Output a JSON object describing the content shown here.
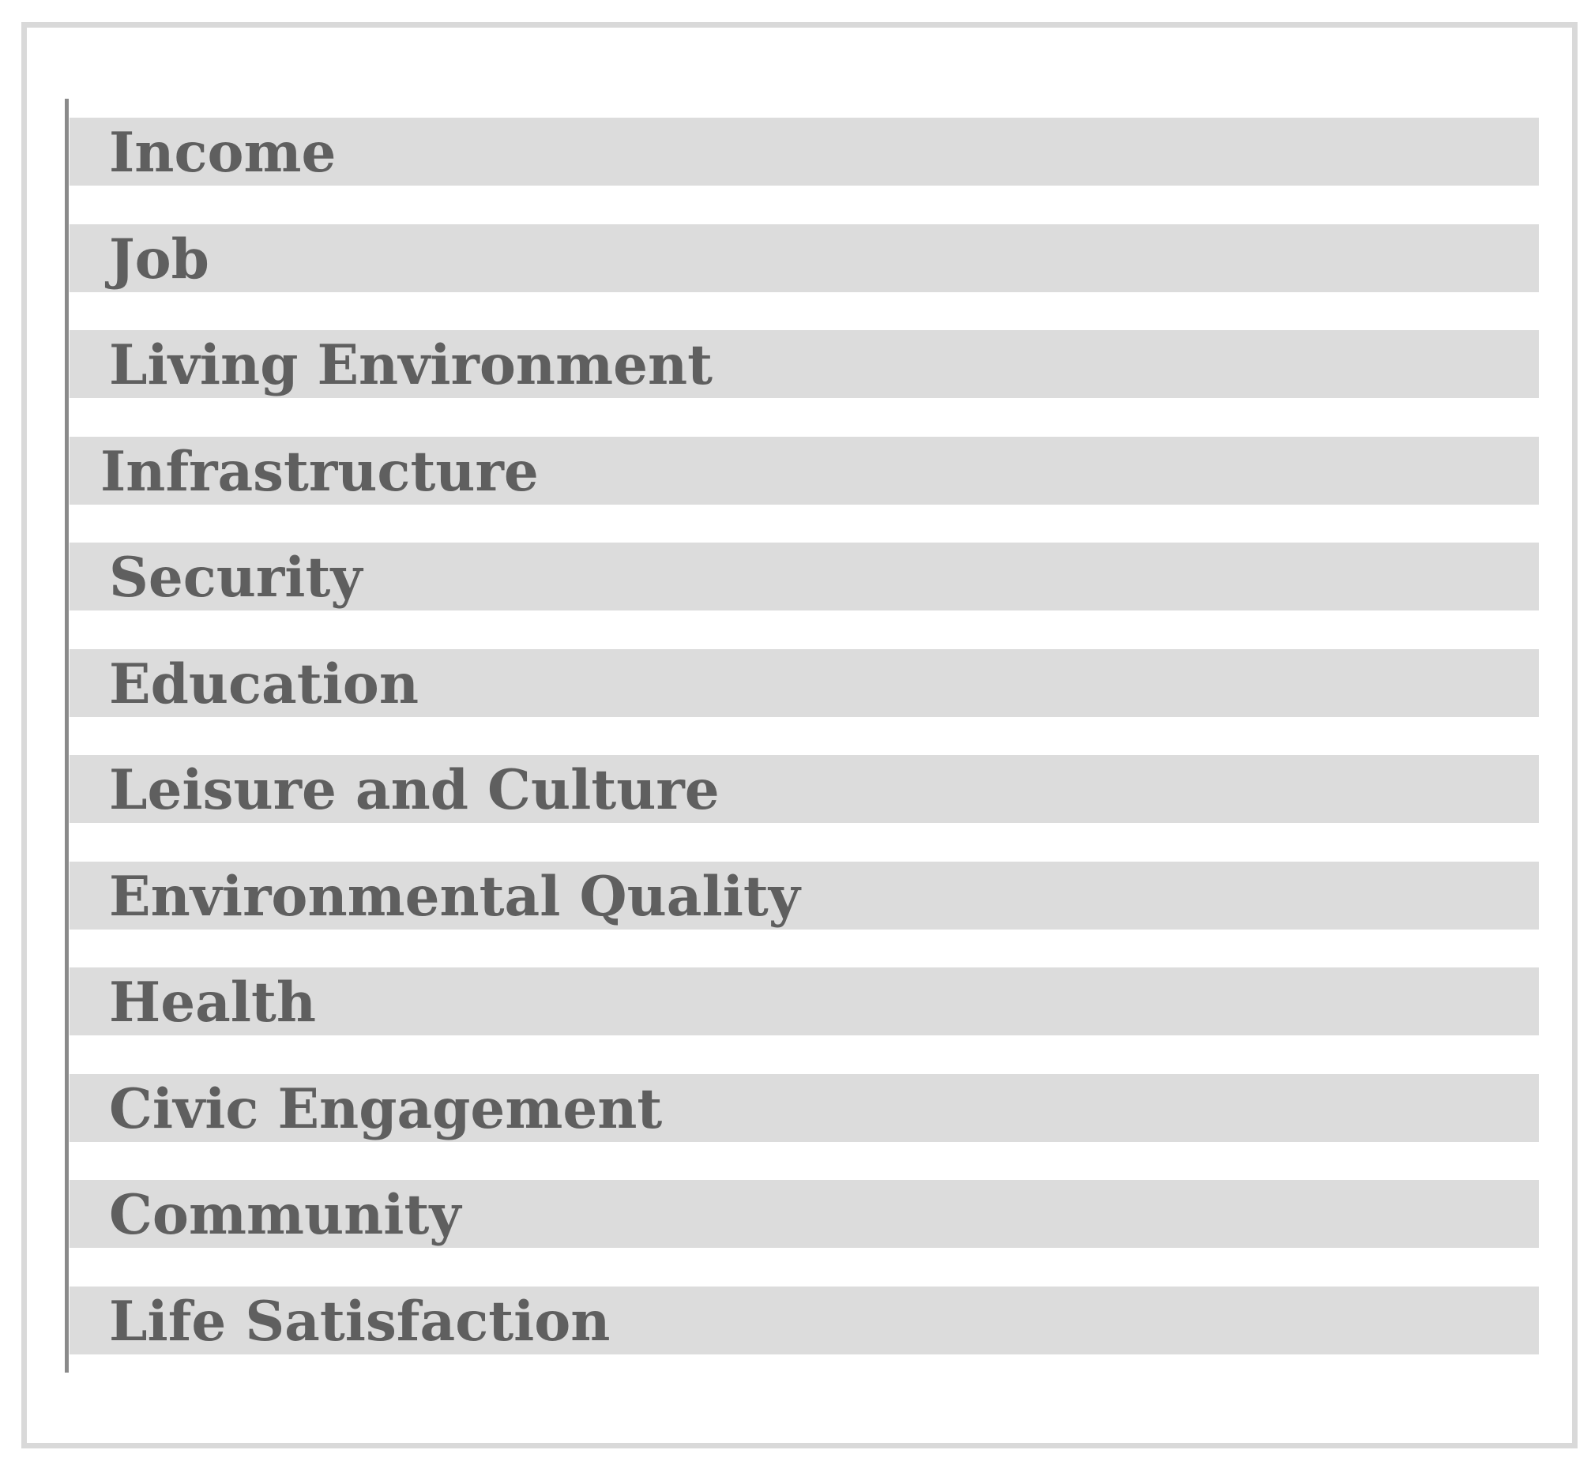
{
  "figure": {
    "items": [
      {
        "label": "Income"
      },
      {
        "label": "Job"
      },
      {
        "label": "Living Environment"
      },
      {
        "label": "Infrastructure",
        "outdented": true
      },
      {
        "label": "Security"
      },
      {
        "label": "Education"
      },
      {
        "label": "Leisure and Culture"
      },
      {
        "label": "Environmental Quality"
      },
      {
        "label": "Health"
      },
      {
        "label": "Civic Engagement"
      },
      {
        "label": "Community"
      },
      {
        "label": "Life Satisfaction"
      }
    ],
    "colors": {
      "bar_fill": "#dcdcdc",
      "label_text": "#5f5f5f",
      "axis_line": "#8a8a8a",
      "frame_border": "#d9d9d9",
      "background": "#ffffff"
    }
  },
  "chart_data": {
    "type": "bar",
    "orientation": "horizontal",
    "title": "",
    "xlabel": "",
    "ylabel": "",
    "categories": [
      "Income",
      "Job",
      "Living Environment",
      "Infrastructure",
      "Security",
      "Education",
      "Leisure and Culture",
      "Environmental Quality",
      "Health",
      "Civic Engagement",
      "Community",
      "Life Satisfaction"
    ],
    "values": [
      1,
      1,
      1,
      1,
      1,
      1,
      1,
      1,
      1,
      1,
      1,
      1
    ],
    "value_scale": "relative",
    "notes": "All twelve horizontal bars are identical full-length gray bands; no numeric axis, tick labels, gridlines, data labels, or legend are shown — only a single vertical baseline on the left.",
    "legend": false,
    "grid": false
  }
}
